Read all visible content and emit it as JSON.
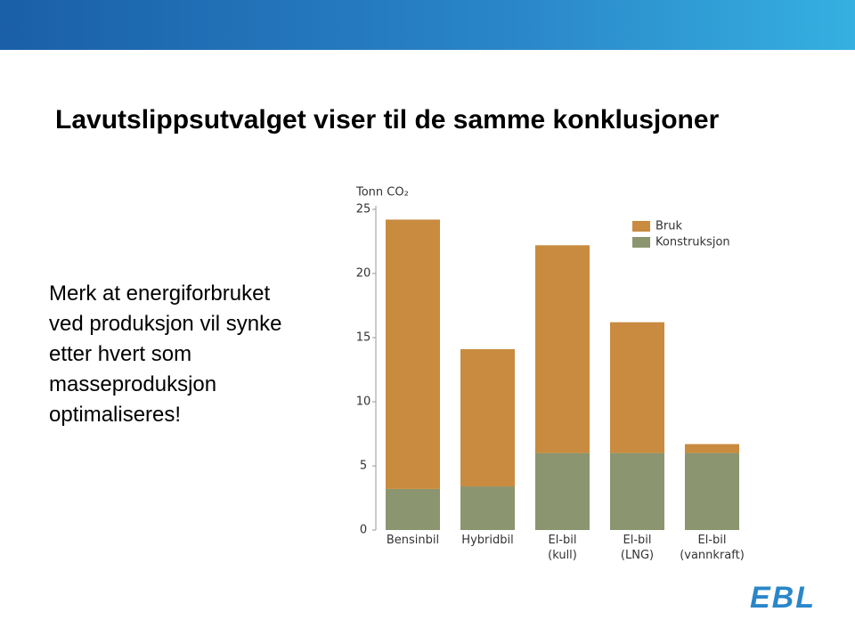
{
  "slide": {
    "title": "Lavutslippsutvalget viser til de samme konklusjoner",
    "body": [
      "Merk at energiforbruket",
      "ved produksjon vil synke",
      "etter hvert som",
      "masseproduksjon",
      "optimaliseres!"
    ],
    "logo": "EBL"
  },
  "chart_data": {
    "type": "stacked-bar",
    "y_label": "Tonn CO₂",
    "categories": [
      "Bensinbil",
      "Hybridbil",
      "El-bil\n(kull)",
      "El-bil\n(LNG)",
      "El-bil\n(vannkraft)"
    ],
    "series": [
      {
        "name": "Bruk",
        "color": "#c98b3f",
        "values": [
          21.0,
          10.7,
          16.2,
          10.2,
          0.7
        ]
      },
      {
        "name": "Konstruksjon",
        "color": "#8b956f",
        "values": [
          3.2,
          3.4,
          6.0,
          6.0,
          6.0
        ]
      }
    ],
    "ylim": [
      0,
      25
    ],
    "yticks": [
      0,
      5,
      10,
      15,
      20,
      25
    ]
  }
}
